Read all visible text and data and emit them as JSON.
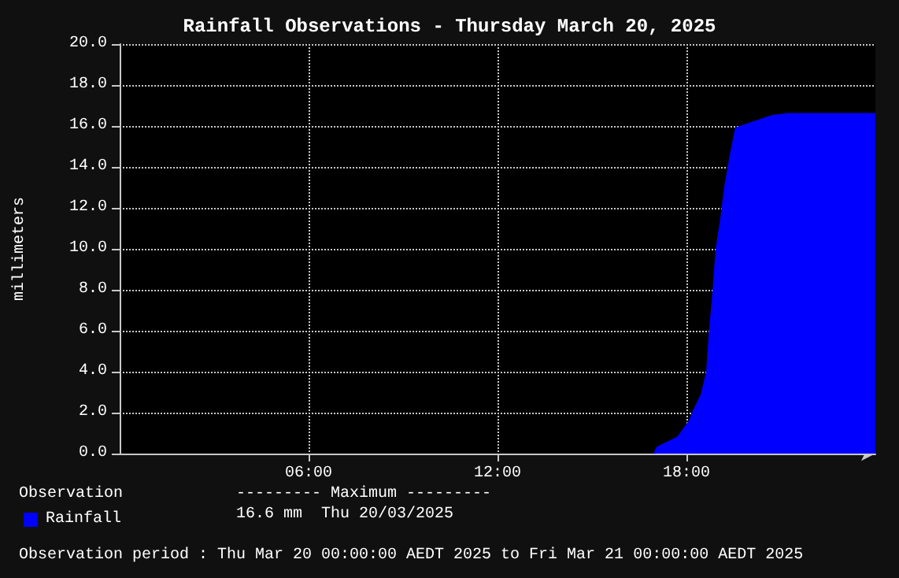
{
  "chart_data": {
    "type": "area",
    "title": "Rainfall Observations - Thursday March 20, 2025",
    "ylabel": "millimeters",
    "legend_title": "Observation",
    "legend": "bottom left",
    "grid": true,
    "marker": "none",
    "xlim": [
      0,
      24
    ],
    "xticks": [
      {
        "value": 6,
        "label": "06:00"
      },
      {
        "value": 12,
        "label": "12:00"
      },
      {
        "value": 18,
        "label": "18:00"
      }
    ],
    "ylim": [
      0,
      20
    ],
    "yticks": [
      {
        "value": 0,
        "label": "0.0"
      },
      {
        "value": 2,
        "label": "2.0"
      },
      {
        "value": 4,
        "label": "4.0"
      },
      {
        "value": 6,
        "label": "6.0"
      },
      {
        "value": 8,
        "label": "8.0"
      },
      {
        "value": 10,
        "label": "10.0"
      },
      {
        "value": 12,
        "label": "12.0"
      },
      {
        "value": 14,
        "label": "14.0"
      },
      {
        "value": 16,
        "label": "16.0"
      },
      {
        "value": 18,
        "label": "18.0"
      },
      {
        "value": 20,
        "label": "20.0"
      }
    ],
    "series": [
      {
        "name": "Rainfall",
        "color": "#0000ff",
        "x": [
          16.98,
          17.07,
          17.73,
          18.1,
          18.23,
          18.48,
          18.65,
          18.73,
          18.85,
          18.95,
          19.1,
          19.23,
          19.4,
          19.57,
          20.15,
          20.73,
          21.23,
          24
        ],
        "values": [
          0,
          0.3,
          0.8,
          1.6,
          2.1,
          2.9,
          4.0,
          5.8,
          7.9,
          10.0,
          11.5,
          13.1,
          14.6,
          15.9,
          16.2,
          16.5,
          16.6,
          16.6
        ]
      }
    ],
    "annotations": [
      "--------- Maximum ---------",
      "16.6 mm  Thu 20/03/2025",
      "Observation period : Thu Mar 20 00:00:00 AEDT 2025 to Fri Mar 21 00:00:00 AEDT 2025"
    ]
  }
}
